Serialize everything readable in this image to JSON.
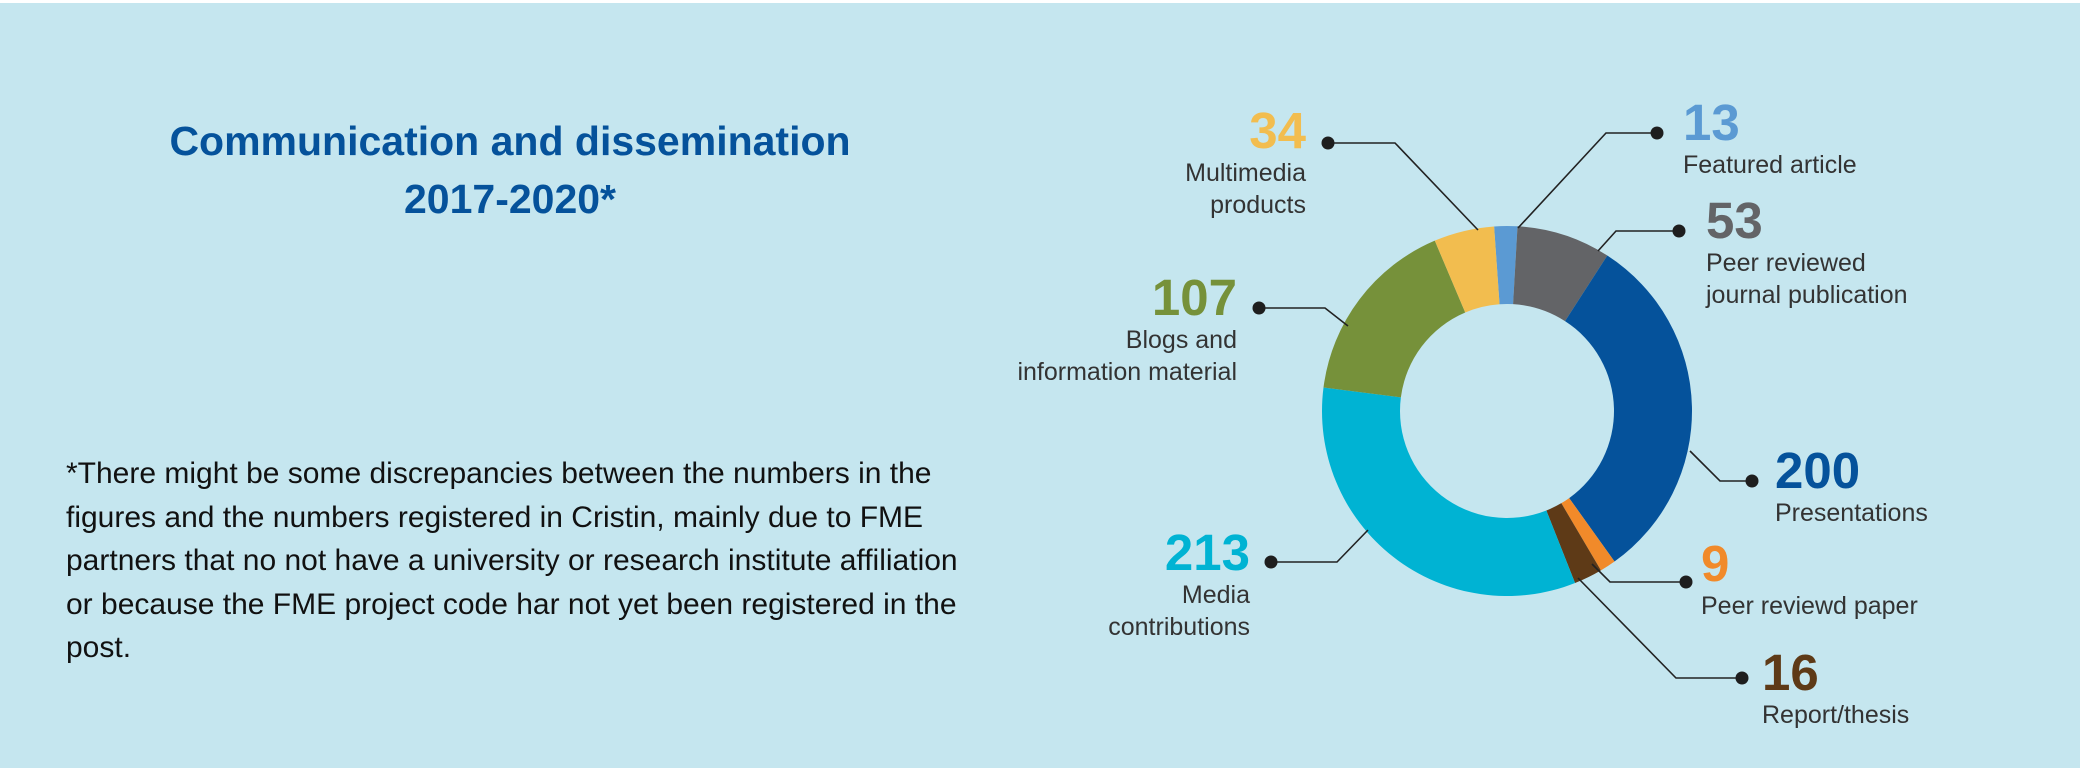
{
  "header": {
    "title_line1": "Communication and dissemination",
    "title_line2": "2017-2020*"
  },
  "footnote": "*There might be some discrepancies between the numbers in the figures and the numbers registered in Cristin, mainly due to FME partners that no not have a university or research institute affiliation or because the FME project code har not yet been registered in the post.",
  "chart_data": {
    "type": "pie",
    "variant": "donut",
    "title": "Communication and dissemination 2017-2020*",
    "slices": [
      {
        "key": "featured-article",
        "label": "Featured article",
        "label_lines": [
          "Featured article"
        ],
        "value": 13,
        "color": "#5b9ad3"
      },
      {
        "key": "peer-reviewed-journal",
        "label": "Peer reviewed journal publication",
        "label_lines": [
          "Peer reviewed",
          "journal publication"
        ],
        "value": 53,
        "color": "#636467"
      },
      {
        "key": "presentations",
        "label": "Presentations",
        "label_lines": [
          "Presentations"
        ],
        "value": 200,
        "color": "#05529b"
      },
      {
        "key": "peer-reviewed-paper",
        "label": "Peer reviewd paper",
        "label_lines": [
          "Peer reviewd paper"
        ],
        "value": 9,
        "color": "#f18a2a"
      },
      {
        "key": "report-thesis",
        "label": "Report/thesis",
        "label_lines": [
          "Report/thesis"
        ],
        "value": 16,
        "color": "#5e3a17"
      },
      {
        "key": "media-contributions",
        "label": "Media contributions",
        "label_lines": [
          "Media",
          "contributions"
        ],
        "value": 213,
        "color": "#00b3d3"
      },
      {
        "key": "blogs-information",
        "label": "Blogs and information material",
        "label_lines": [
          "Blogs and",
          "information material"
        ],
        "value": 107,
        "color": "#76913a"
      },
      {
        "key": "multimedia-products",
        "label": "Multimedia products",
        "label_lines": [
          "Multimedia",
          "products"
        ],
        "value": 34,
        "color": "#f2bd4f"
      }
    ]
  }
}
